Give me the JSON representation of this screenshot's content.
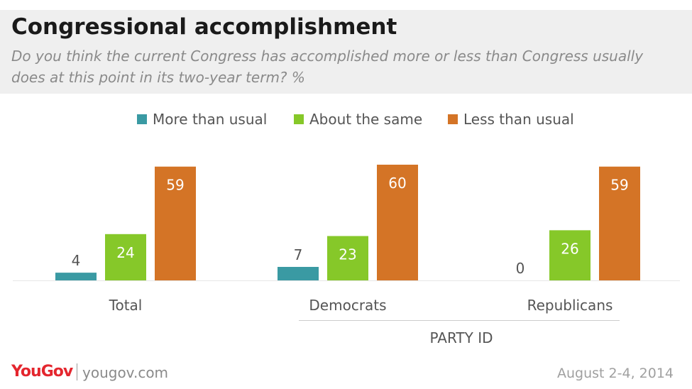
{
  "header": {
    "title": "Congressional accomplishment",
    "subtitle": "Do you think the current Congress has accomplished more or less than Congress usually does at this point in its two-year term? %"
  },
  "footer": {
    "logo": "YouGov",
    "site": "yougov.com",
    "date": "August 2-4, 2014"
  },
  "chart_data": {
    "type": "bar",
    "categories": [
      "Total",
      "Democrats",
      "Republicans"
    ],
    "group_label": "PARTY ID",
    "series": [
      {
        "name": "More than usual",
        "color": "#3a9aa3",
        "values": [
          4,
          7,
          0
        ]
      },
      {
        "name": "About the same",
        "color": "#86c829",
        "values": [
          24,
          23,
          26
        ]
      },
      {
        "name": "Less than usual",
        "color": "#d47426",
        "values": [
          59,
          60,
          59
        ]
      }
    ],
    "ylim": [
      0,
      60
    ],
    "legend": "top",
    "grid": false
  }
}
